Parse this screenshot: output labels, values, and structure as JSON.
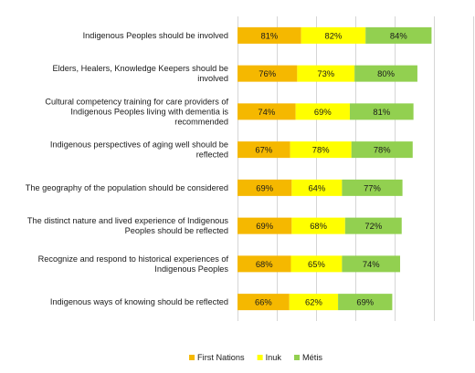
{
  "chart_data": {
    "type": "bar",
    "orientation": "horizontal",
    "stacked": true,
    "categories": [
      "Indigenous Peoples should be involved",
      "Elders, Healers, Knowledge Keepers should be involved",
      "Cultural competency training for care providers of Indigenous Peoples living with dementia is recommended",
      "Indigenous perspectives of aging well should be reflected",
      "The geography of the population should be considered",
      "The distinct nature and lived experience of Indigenous Peoples should be reflected",
      "Recognize and respond to historical experiences of Indigenous Peoples",
      "Indigenous ways of knowing should be reflected"
    ],
    "category_lines": [
      [
        "Indigenous Peoples should be involved"
      ],
      [
        "Elders, Healers, Knowledge Keepers should be",
        "involved"
      ],
      [
        "Cultural competency training for care providers of",
        "Indigenous Peoples living with dementia is",
        "recommended"
      ],
      [
        "Indigenous perspectives of aging well should be",
        "reflected"
      ],
      [
        "The geography of the population should be considered"
      ],
      [
        "The distinct nature and lived experience of Indigenous",
        "Peoples should be reflected"
      ],
      [
        "Recognize and respond to historical experiences of",
        "Indigenous Peoples"
      ],
      [
        "Indigenous ways of knowing should be reflected"
      ]
    ],
    "series": [
      {
        "name": "First Nations",
        "color": "#f5b800",
        "values": [
          81,
          76,
          74,
          67,
          69,
          69,
          68,
          66
        ],
        "labels": [
          "81%",
          "76%",
          "74%",
          "67%",
          "69%",
          "69%",
          "68%",
          "66%"
        ]
      },
      {
        "name": "Inuk",
        "color": "#ffff00",
        "values": [
          82,
          73,
          69,
          78,
          64,
          68,
          65,
          62
        ],
        "labels": [
          "82%",
          "73%",
          "69%",
          "78%",
          "64%",
          "68%",
          "65%",
          "62%"
        ]
      },
      {
        "name": "Métis",
        "color": "#92d050",
        "values": [
          84,
          80,
          81,
          78,
          77,
          72,
          74,
          69
        ],
        "labels": [
          "84%",
          "80%",
          "81%",
          "78%",
          "77%",
          "72%",
          "74%",
          "69%"
        ]
      }
    ],
    "xlim": [
      0,
      300
    ],
    "grid": true,
    "legend_position": "bottom"
  }
}
